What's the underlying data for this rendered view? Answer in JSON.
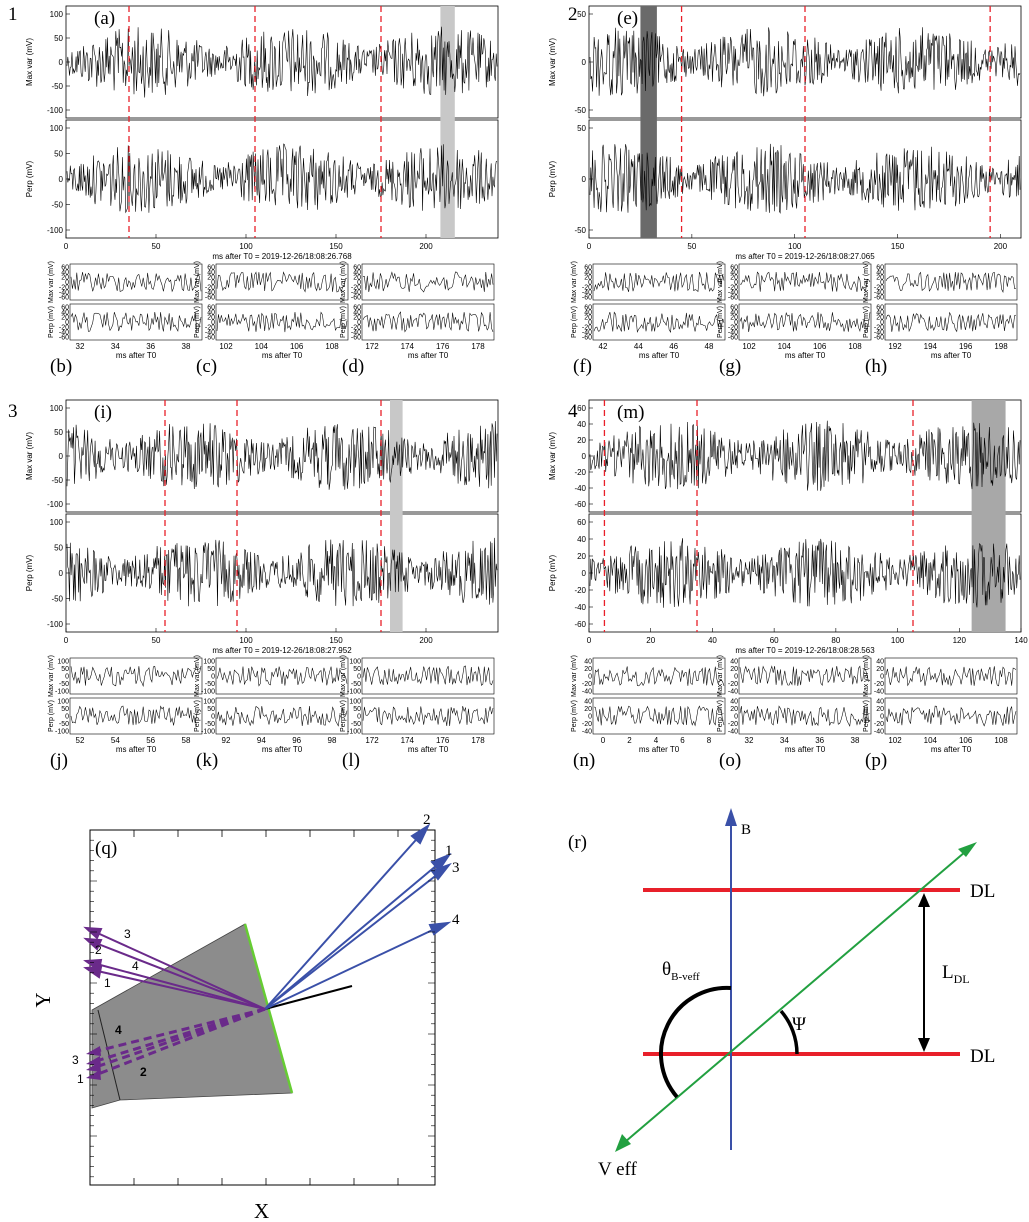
{
  "group_labels": [
    "1",
    "2",
    "3",
    "4"
  ],
  "panels": [
    {
      "group": "1",
      "labels": [
        "(a)",
        "(b)",
        "(c)",
        "(d)"
      ],
      "max_ylabel": "Max var (mV)",
      "perp_ylabel": "Perp (mV)",
      "max_ticks": [
        "100",
        "50",
        "0",
        "-50",
        "-100"
      ],
      "perp_ticks": [
        "100",
        "50",
        "0",
        "-50",
        "-100"
      ],
      "x_ticks": [
        "0",
        "50",
        "100",
        "150",
        "200"
      ],
      "xlabel": "ms after T0 = 2019-12-26/18:08:26.768",
      "dashed": [
        35,
        105,
        175
      ],
      "shade": {
        "from": 208,
        "to": 216,
        "color": "#c8c8c8"
      },
      "xmax": 240,
      "sub_ticks_y_max": [
        "60",
        "40",
        "20",
        "0",
        "-20",
        "-40",
        "-60"
      ],
      "sub_ticks_y_perp": [
        "60",
        "40",
        "20",
        "0",
        "-20",
        "-40",
        "-60"
      ],
      "sub_max_ylabel": "Max var (mV)",
      "sub_perp_ylabel": "Perp (mV)",
      "sub_xlabel": "ms after T0",
      "subs": [
        {
          "ticks": [
            "32",
            "34",
            "36",
            "38"
          ]
        },
        {
          "ticks": [
            "102",
            "104",
            "106",
            "108"
          ]
        },
        {
          "ticks": [
            "172",
            "174",
            "176",
            "178"
          ]
        }
      ]
    },
    {
      "group": "2",
      "labels": [
        "(e)",
        "(f)",
        "(g)",
        "(h)"
      ],
      "max_ylabel": "Max var (mV)",
      "perp_ylabel": "Perp (mV)",
      "max_ticks": [
        "50",
        "0",
        "-50"
      ],
      "perp_ticks": [
        "50",
        "0",
        "-50"
      ],
      "x_ticks": [
        "0",
        "50",
        "100",
        "150",
        "200"
      ],
      "xlabel": "ms after T0 = 2019-12-26/18:08:27.065",
      "dashed": [
        45,
        105,
        195
      ],
      "shade": {
        "from": 25,
        "to": 33,
        "color": "#6a6a6a"
      },
      "xmax": 210,
      "sub_ticks_y_max": [
        "60",
        "40",
        "20",
        "0",
        "-20",
        "-40",
        "-60"
      ],
      "sub_ticks_y_perp": [
        "60",
        "40",
        "20",
        "0",
        "-20",
        "-40",
        "-60"
      ],
      "sub_max_ylabel": "Max var (mV)",
      "sub_perp_ylabel": "Perp (mV)",
      "sub_xlabel": "ms after T0",
      "subs": [
        {
          "ticks": [
            "42",
            "44",
            "46",
            "48"
          ]
        },
        {
          "ticks": [
            "102",
            "104",
            "106",
            "108"
          ]
        },
        {
          "ticks": [
            "192",
            "194",
            "196",
            "198"
          ]
        }
      ]
    },
    {
      "group": "3",
      "labels": [
        "(i)",
        "(j)",
        "(k)",
        "(l)"
      ],
      "max_ylabel": "Max var (mV)",
      "perp_ylabel": "Perp (mV)",
      "max_ticks": [
        "100",
        "50",
        "0",
        "-50",
        "-100"
      ],
      "perp_ticks": [
        "100",
        "50",
        "0",
        "-50",
        "-100"
      ],
      "x_ticks": [
        "0",
        "50",
        "100",
        "150",
        "200"
      ],
      "xlabel": "ms after T0 = 2019-12-26/18:08:27.952",
      "dashed": [
        55,
        95,
        175
      ],
      "shade": {
        "from": 180,
        "to": 187,
        "color": "#c8c8c8"
      },
      "xmax": 240,
      "sub_ticks_y_max": [
        "100",
        "50",
        "0",
        "-50",
        "-100"
      ],
      "sub_ticks_y_perp": [
        "100",
        "50",
        "0",
        "-50",
        "-100"
      ],
      "sub_max_ylabel": "Max var (mV)",
      "sub_perp_ylabel": "Perp (mV)",
      "sub_xlabel": "ms after T0",
      "subs": [
        {
          "ticks": [
            "52",
            "54",
            "56",
            "58"
          ]
        },
        {
          "ticks": [
            "92",
            "94",
            "96",
            "98"
          ]
        },
        {
          "ticks": [
            "172",
            "174",
            "176",
            "178"
          ]
        }
      ]
    },
    {
      "group": "4",
      "labels": [
        "(m)",
        "(n)",
        "(o)",
        "(p)"
      ],
      "max_ylabel": "Max var (mV)",
      "perp_ylabel": "Perp (mV)",
      "max_ticks": [
        "60",
        "40",
        "20",
        "0",
        "-20",
        "-40",
        "-60"
      ],
      "perp_ticks": [
        "60",
        "40",
        "20",
        "0",
        "-20",
        "-40",
        "-60"
      ],
      "x_ticks": [
        "0",
        "20",
        "40",
        "60",
        "80",
        "100",
        "120",
        "140"
      ],
      "xlabel": "ms after T0 = 2019-12-26/18:08:28.563",
      "dashed": [
        5,
        35,
        105
      ],
      "shade": {
        "from": 124,
        "to": 135,
        "color": "#a8a8a8"
      },
      "xmax": 140,
      "sub_ticks_y_max": [
        "40",
        "20",
        "0",
        "-20",
        "-40"
      ],
      "sub_ticks_y_perp": [
        "40",
        "20",
        "0",
        "-20",
        "-40"
      ],
      "sub_max_ylabel": "Max var (mV)",
      "sub_perp_ylabel": "Perp (mV)",
      "sub_xlabel": "ms after T0",
      "subs": [
        {
          "ticks": [
            "0",
            "2",
            "4",
            "6",
            "8"
          ]
        },
        {
          "ticks": [
            "32",
            "34",
            "36",
            "38"
          ]
        },
        {
          "ticks": [
            "102",
            "104",
            "106",
            "108"
          ]
        }
      ]
    }
  ],
  "q": {
    "label": "(q)",
    "xlabel": "X",
    "ylabel": "Y",
    "blue_arrow_labels": [
      "2",
      "1",
      "3",
      "4"
    ],
    "purple_arrow_labels": [
      "3",
      "2",
      "4",
      "1"
    ],
    "dashed_arrow_labels": [
      "4",
      "3",
      "2",
      "1"
    ],
    "colors": {
      "blue": "#3a50a8",
      "purple": "#6a2a8a",
      "green": "#66cc33",
      "polygon": "#8c8c8c"
    }
  },
  "r": {
    "label": "(r)",
    "b_label": "B",
    "dl_top": "DL",
    "dl_bottom": "DL",
    "ldl_main": "L",
    "ldl_sub": "DL",
    "theta_main": "θ",
    "theta_sub": "B-veff",
    "psi": "Ψ",
    "veff": "V eff",
    "colors": {
      "red": "#e8202a",
      "blue": "#3a50a8",
      "green": "#22a040"
    }
  }
}
